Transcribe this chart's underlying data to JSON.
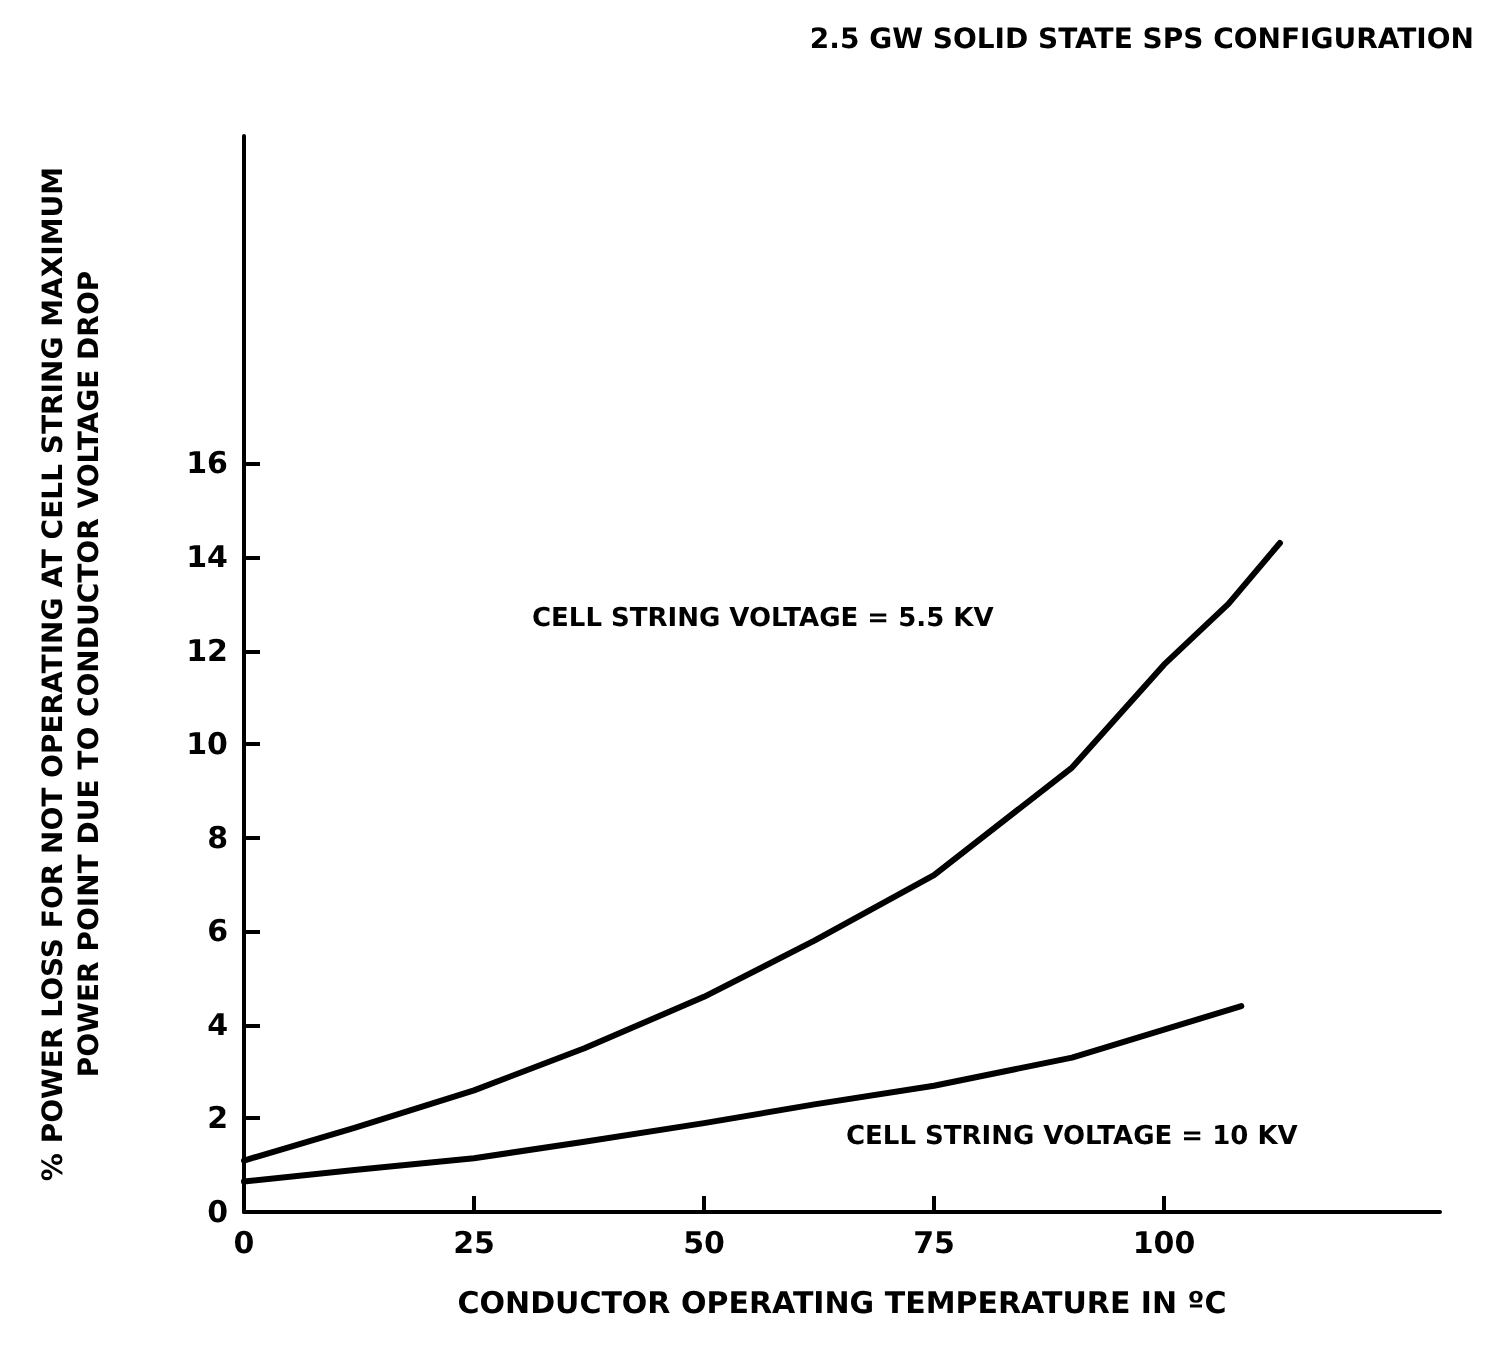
{
  "chart_data": {
    "type": "line",
    "title": "2.5 GW SOLID STATE SPS CONFIGURATION",
    "xlabel": "CONDUCTOR OPERATING TEMPERATURE IN ºC",
    "ylabel": "% POWER LOSS FOR NOT OPERATING AT CELL STRING MAXIMUM\nPOWER POINT DUE TO CONDUCTOR VOLTAGE DROP",
    "series": [
      {
        "color": "#000000",
        "x": [
          0,
          12,
          25,
          37,
          50,
          62,
          75,
          90,
          100,
          107,
          112.6
        ],
        "values": [
          1.1,
          1.8,
          2.6,
          3.5,
          4.6,
          5.8,
          7.2,
          9.5,
          11.7,
          13.0,
          14.3
        ]
      },
      {
        "color": "#000000",
        "x": [
          0,
          12,
          25,
          37,
          50,
          62,
          75,
          90,
          100,
          108.4
        ],
        "values": [
          0.65,
          0.9,
          1.15,
          1.5,
          1.9,
          2.3,
          2.7,
          3.3,
          3.9,
          4.4
        ]
      }
    ],
    "annotations": [
      "CELL STRING VOLTAGE = 5.5 KV",
      "CELL STRING VOLTAGE = 10 KV"
    ],
    "xlim": [
      0,
      130
    ],
    "xticks": [
      0,
      25,
      50,
      75,
      100
    ],
    "ylim": [
      0,
      23
    ],
    "yticks": [
      0,
      2,
      4,
      6,
      8,
      10,
      12,
      14,
      16
    ],
    "grid": false,
    "marker": "none",
    "line_style": "solid"
  }
}
